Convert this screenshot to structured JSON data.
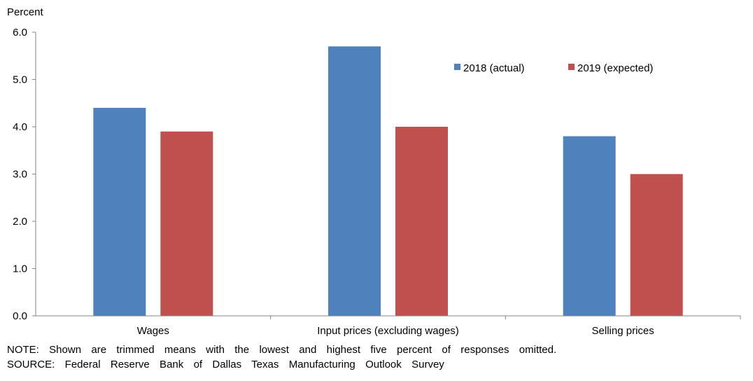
{
  "chart_data": {
    "type": "bar",
    "ylabel": "Percent",
    "xlabel": "",
    "title": "",
    "ylim": [
      0,
      6
    ],
    "yticks": [
      "0.0",
      "1.0",
      "2.0",
      "3.0",
      "4.0",
      "5.0",
      "6.0"
    ],
    "categories": [
      "Wages",
      "Input prices (excluding wages)",
      "Selling prices"
    ],
    "series": [
      {
        "name": "2018 (actual)",
        "values": [
          4.4,
          5.7,
          3.8
        ],
        "color": "#4F81BD"
      },
      {
        "name": "2019 (expected)",
        "values": [
          3.9,
          4.0,
          3.0
        ],
        "color": "#C0504D"
      }
    ],
    "legend_position": "top-right",
    "grid": false
  },
  "footnotes": {
    "note": "NOTE:  Shown  are  trimmed  means  with  the  lowest  and  highest  five  percent  of  responses  omitted.",
    "source": "SOURCE:  Federal  Reserve  Bank  of  Dallas  Texas  Manufacturing  Outlook  Survey"
  }
}
